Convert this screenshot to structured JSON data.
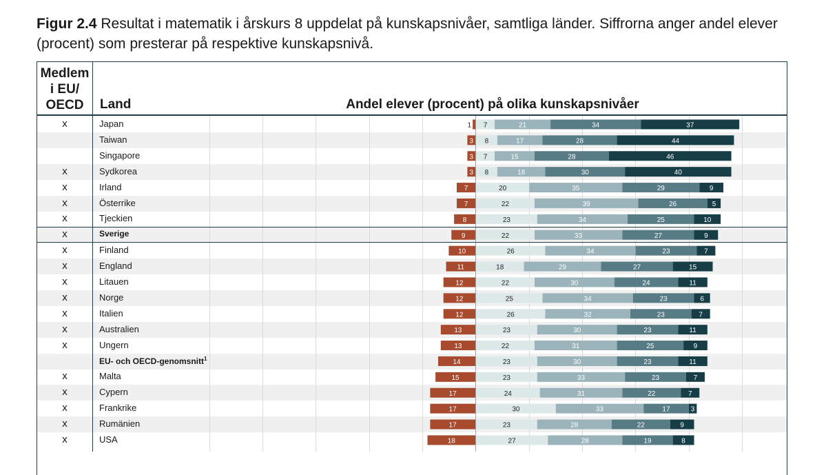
{
  "caption": {
    "figure_label": "Figur 2.4",
    "text": " Resultat i matematik i årskurs 8 uppdelat på kunskapsnivåer, samtliga länder. Siffrorna anger andel elever (procent) som presterar på respektive kunskapsnivå."
  },
  "headers": {
    "member": "Medlem i EU/ OECD",
    "land": "Land",
    "chart": "Andel elever (procent) på olika kunskapsnivåer"
  },
  "colors": {
    "level0": "#a84a2d",
    "level1": "#dde8e9",
    "level2": "#9bb4bb",
    "level3": "#587c86",
    "level4": "#173e46",
    "row_shade": "#f0f0f0"
  },
  "rows": [
    {
      "member": "x",
      "land": "Japan"
    },
    {
      "member": "",
      "land": "Taiwan"
    },
    {
      "member": "",
      "land": "Singapore"
    },
    {
      "member": "x",
      "land": "Sydkorea"
    },
    {
      "member": "x",
      "land": "Irland"
    },
    {
      "member": "x",
      "land": "Österrike"
    },
    {
      "member": "x",
      "land": "Tjeckien"
    },
    {
      "member": "x",
      "land": "Sverige",
      "bold": true
    },
    {
      "member": "x",
      "land": "Finland"
    },
    {
      "member": "x",
      "land": "England"
    },
    {
      "member": "x",
      "land": "Litauen"
    },
    {
      "member": "x",
      "land": "Norge"
    },
    {
      "member": "x",
      "land": "Italien"
    },
    {
      "member": "x",
      "land": "Australien"
    },
    {
      "member": "x",
      "land": "Ungern"
    },
    {
      "member": "",
      "land": "EU- och OECD-genomsnitt",
      "sup": "1",
      "bold": true
    },
    {
      "member": "x",
      "land": "Malta"
    },
    {
      "member": "x",
      "land": "Cypern"
    },
    {
      "member": "x",
      "land": "Frankrike"
    },
    {
      "member": "x",
      "land": "Rumänien"
    },
    {
      "member": "x",
      "land": "USA"
    }
  ],
  "chart_data": {
    "type": "bar",
    "stacked": "diverging",
    "categories": [
      "Japan",
      "Taiwan",
      "Singapore",
      "Sydkorea",
      "Irland",
      "Österrike",
      "Tjeckien",
      "Sverige",
      "Finland",
      "England",
      "Litauen",
      "Norge",
      "Italien",
      "Australien",
      "Ungern",
      "EU- och OECD-genomsnitt",
      "Malta",
      "Cypern",
      "Frankrike",
      "Rumänien",
      "USA"
    ],
    "series": [
      {
        "values": [
          1,
          3,
          3,
          3,
          7,
          7,
          8,
          9,
          10,
          11,
          12,
          12,
          12,
          13,
          13,
          14,
          15,
          17,
          17,
          17,
          18
        ]
      },
      {
        "values": [
          7,
          8,
          7,
          8,
          20,
          22,
          23,
          22,
          26,
          18,
          22,
          25,
          26,
          23,
          22,
          23,
          23,
          24,
          30,
          23,
          27
        ]
      },
      {
        "values": [
          21,
          17,
          15,
          18,
          35,
          39,
          34,
          33,
          34,
          29,
          30,
          34,
          32,
          30,
          31,
          30,
          33,
          31,
          33,
          28,
          28
        ]
      },
      {
        "values": [
          34,
          28,
          28,
          30,
          29,
          26,
          25,
          27,
          23,
          27,
          24,
          23,
          23,
          23,
          25,
          23,
          23,
          22,
          17,
          22,
          19
        ]
      },
      {
        "values": [
          37,
          44,
          46,
          40,
          9,
          5,
          10,
          9,
          7,
          15,
          11,
          6,
          7,
          11,
          9,
          11,
          7,
          7,
          3,
          9,
          8
        ]
      }
    ]
  }
}
